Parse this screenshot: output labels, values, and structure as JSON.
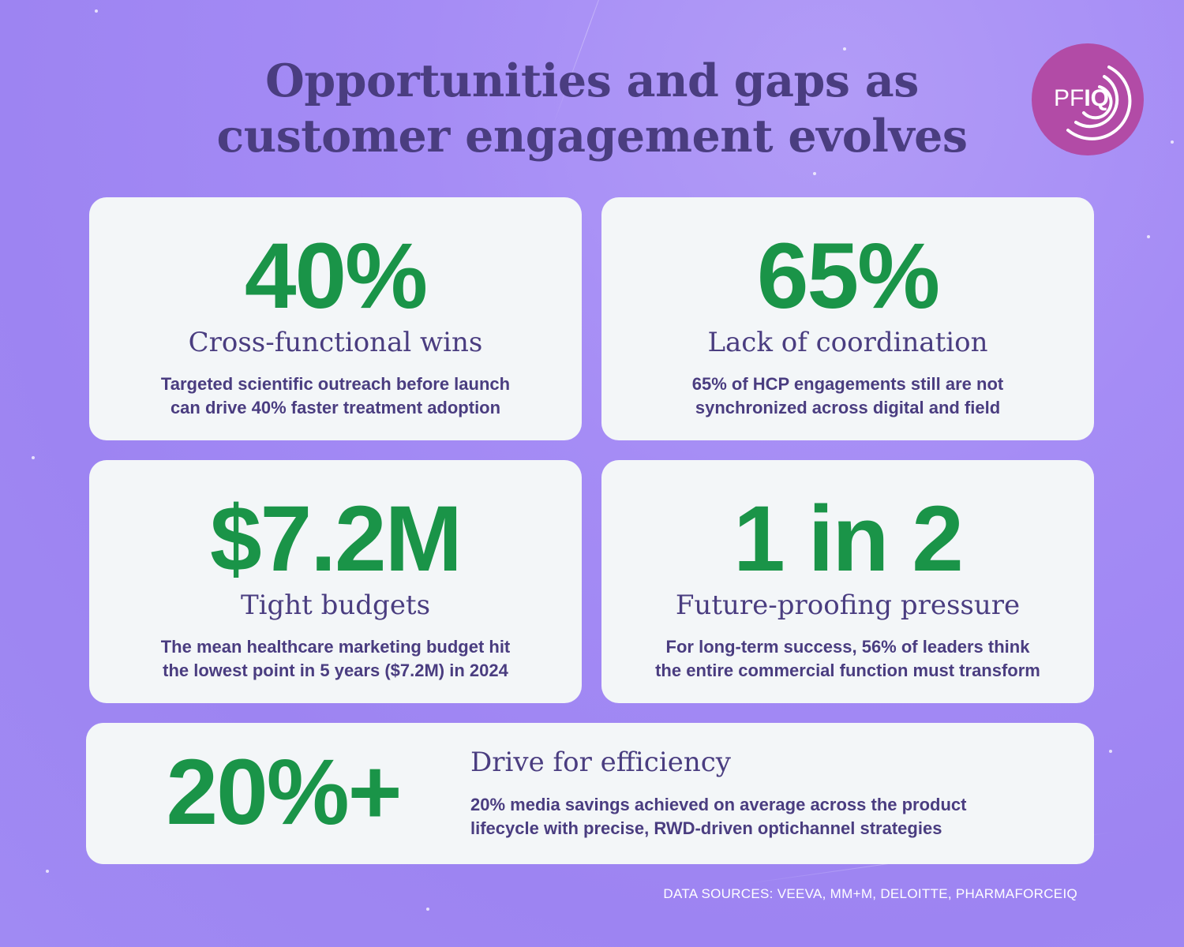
{
  "title": {
    "line1": "Opportunities and gaps as",
    "line2": "customer engagement evolves"
  },
  "logo": {
    "pf": "PF",
    "iq": "IQ",
    "color": "#b24ba6"
  },
  "cards": [
    {
      "stat": "40%",
      "heading": "Cross-functional wins",
      "desc_line1": "Targeted scientific outreach before launch",
      "desc_line2": "can drive 40% faster treatment adoption"
    },
    {
      "stat": "65%",
      "heading": "Lack of coordination",
      "desc_line1": "65% of HCP engagements still are not",
      "desc_line2": "synchronized across digital and field"
    },
    {
      "stat": "$7.2M",
      "heading": "Tight budgets",
      "desc_line1": "The mean healthcare marketing budget hit",
      "desc_line2": "the lowest point in 5 years ($7.2M) in 2024"
    },
    {
      "stat": "1 in 2",
      "heading": "Future-proofing pressure",
      "desc_line1": "For long-term success, 56% of leaders think",
      "desc_line2": "the entire commercial function must transform"
    },
    {
      "stat": "20%+",
      "heading": "Drive for efficiency",
      "desc_line1": "20% media savings achieved on average across the product",
      "desc_line2": "lifecycle with precise, RWD-driven optichannel strategies"
    }
  ],
  "sources": "DATA SOURCES: VEEVA, MM+M, DELOITTE, PHARMAFORCEIQ",
  "colors": {
    "background": "#a58cf5",
    "card": "#f3f6f8",
    "stat_green": "#1a9448",
    "text_purple": "#4a3d80"
  }
}
